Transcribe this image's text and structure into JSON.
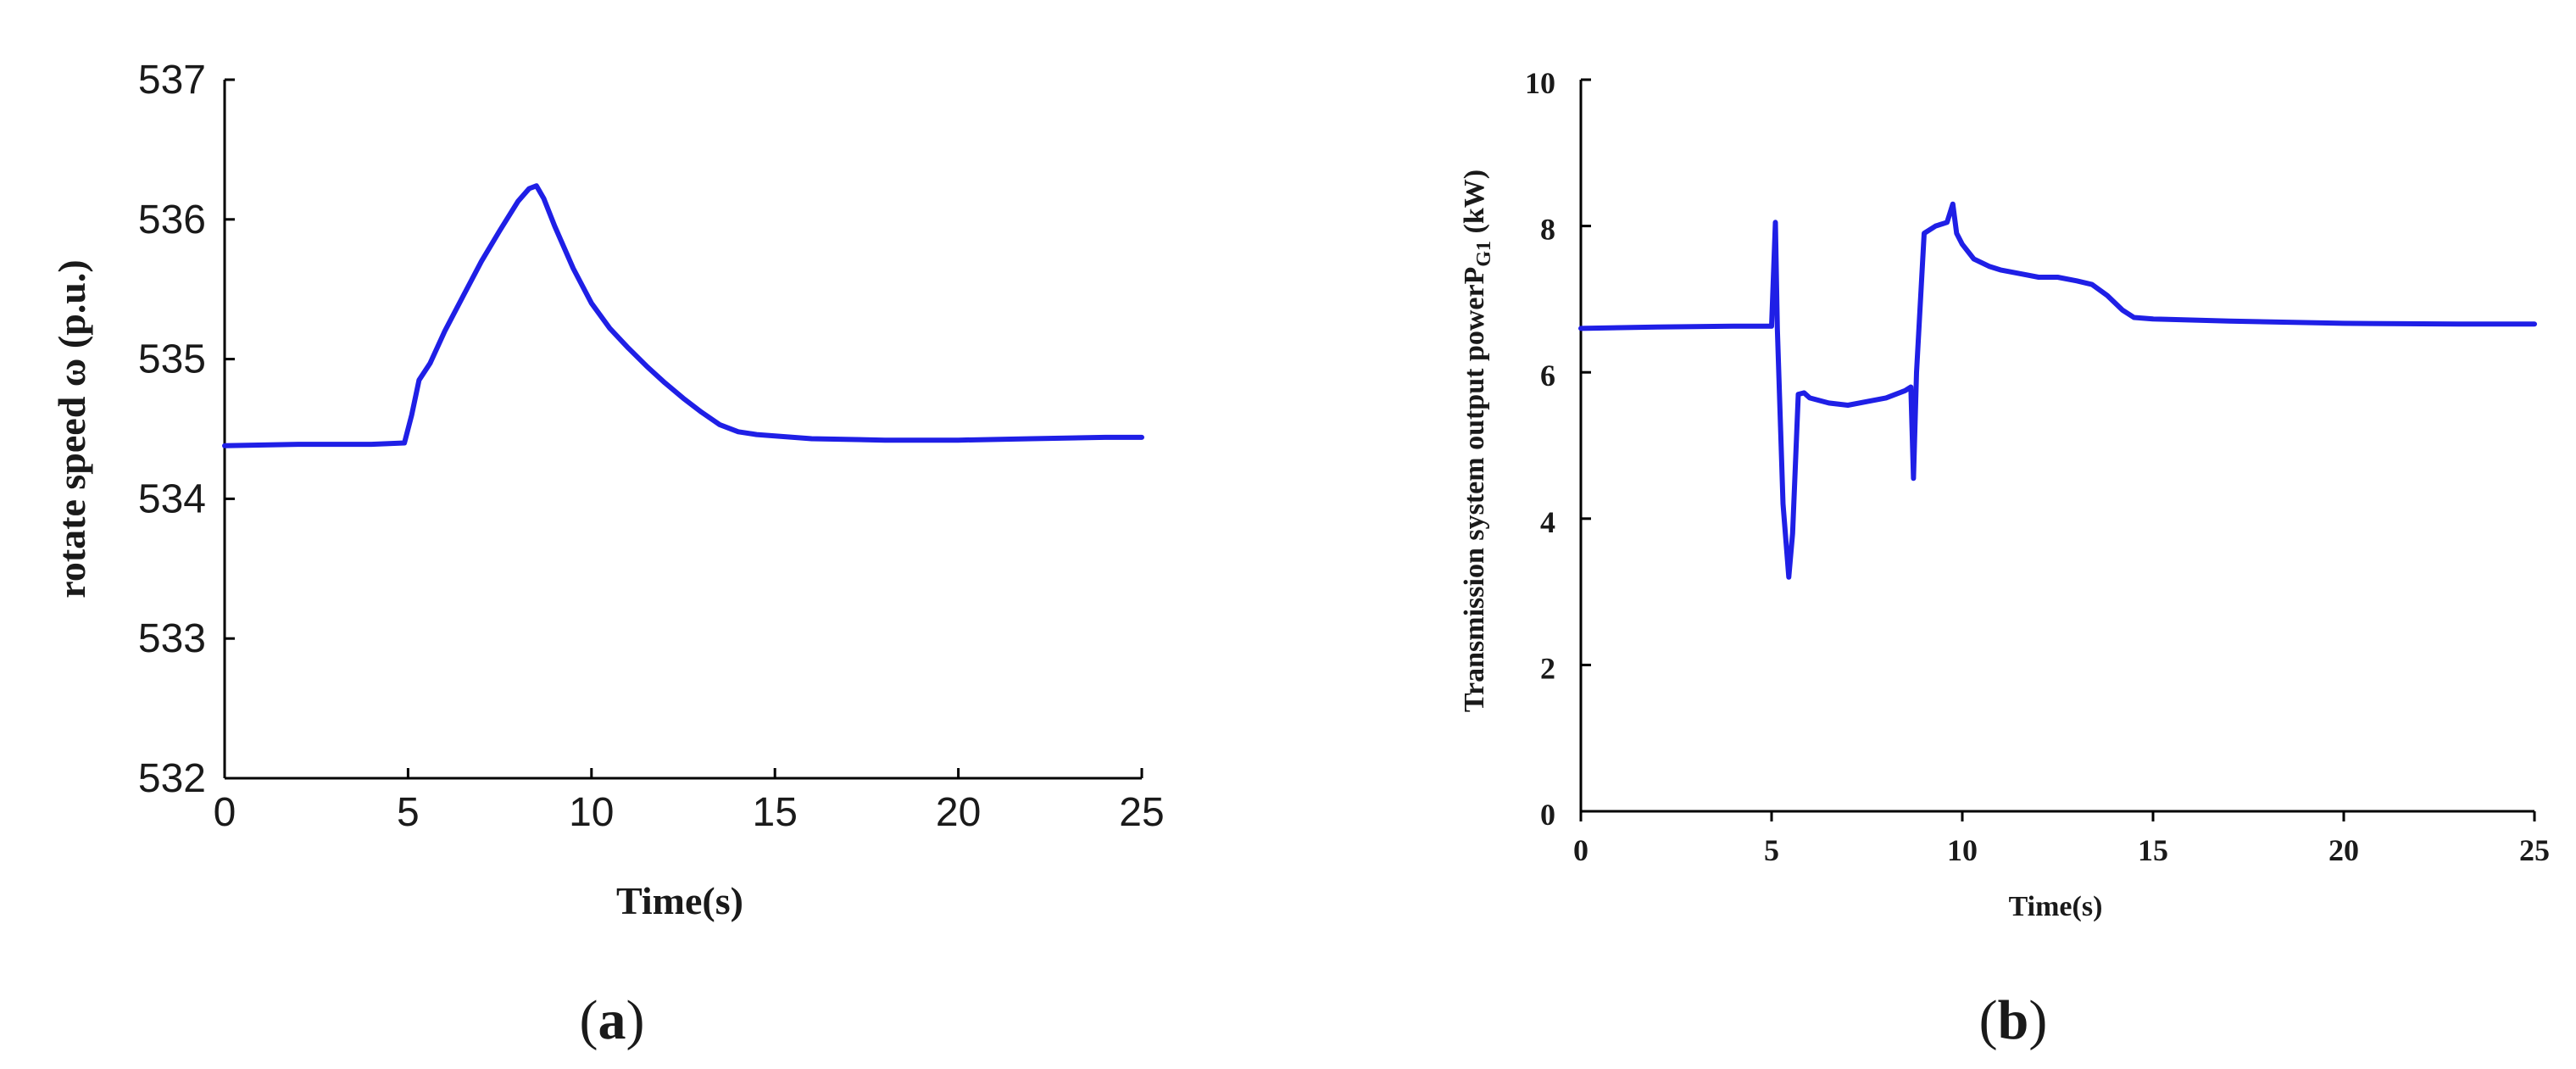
{
  "colors": {
    "line": "#1f1fe6",
    "axis": "#000000",
    "text": "#1a1a1a"
  },
  "chart_data": [
    {
      "type": "line",
      "panel_label": "a",
      "xlabel": "Time(s)",
      "ylabel": "rotate speed  ω  (p.u.)",
      "xlim": [
        0,
        25
      ],
      "ylim": [
        532,
        537
      ],
      "xticks": [
        0,
        5,
        10,
        15,
        20,
        25
      ],
      "yticks": [
        532,
        533,
        534,
        535,
        536,
        537
      ],
      "grid": false,
      "series": [
        {
          "x": [
            0,
            2,
            4,
            4.9,
            5.1,
            5.3,
            5.6,
            6,
            6.5,
            7,
            7.5,
            8,
            8.3,
            8.5,
            8.7,
            9,
            9.5,
            10,
            10.5,
            11,
            11.5,
            12,
            12.5,
            13,
            13.5,
            14,
            14.5,
            15,
            16,
            18,
            20,
            22,
            24,
            25
          ],
          "y": [
            534.38,
            534.39,
            534.39,
            534.4,
            534.6,
            534.85,
            534.97,
            535.2,
            535.45,
            535.7,
            535.92,
            536.13,
            536.22,
            536.24,
            536.15,
            535.95,
            535.65,
            535.4,
            535.22,
            535.08,
            534.95,
            534.83,
            534.72,
            534.62,
            534.53,
            534.48,
            534.46,
            534.45,
            534.43,
            534.42,
            534.42,
            534.43,
            534.44,
            534.44
          ]
        }
      ]
    },
    {
      "type": "line",
      "panel_label": "b",
      "xlabel": "Time(s)",
      "ylabel": "Transmission system output power",
      "ylabel_symbol": "P",
      "ylabel_subscript": "G1",
      "ylabel_unit": " (kW)",
      "xlim": [
        0,
        25
      ],
      "ylim": [
        0,
        10
      ],
      "xticks": [
        0,
        5,
        10,
        15,
        20,
        25
      ],
      "yticks": [
        0,
        2,
        4,
        6,
        8,
        10
      ],
      "grid": false,
      "series": [
        {
          "x": [
            0,
            2,
            4,
            5.0,
            5.1,
            5.15,
            5.3,
            5.45,
            5.55,
            5.7,
            5.85,
            6.0,
            6.5,
            7,
            7.5,
            8,
            8.5,
            8.65,
            8.72,
            8.8,
            9.0,
            9.3,
            9.6,
            9.75,
            9.85,
            10.0,
            10.3,
            10.7,
            11,
            11.5,
            12,
            12.5,
            13,
            13.4,
            13.8,
            14.2,
            14.5,
            15,
            17,
            20,
            23,
            25
          ],
          "y": [
            6.6,
            6.62,
            6.63,
            6.63,
            8.05,
            6.6,
            4.2,
            3.2,
            3.8,
            5.7,
            5.72,
            5.65,
            5.58,
            5.55,
            5.6,
            5.65,
            5.75,
            5.8,
            4.55,
            6.0,
            7.9,
            8.0,
            8.05,
            8.3,
            7.9,
            7.75,
            7.55,
            7.45,
            7.4,
            7.35,
            7.3,
            7.3,
            7.25,
            7.2,
            7.05,
            6.85,
            6.75,
            6.73,
            6.7,
            6.67,
            6.66,
            6.66
          ]
        }
      ]
    }
  ]
}
